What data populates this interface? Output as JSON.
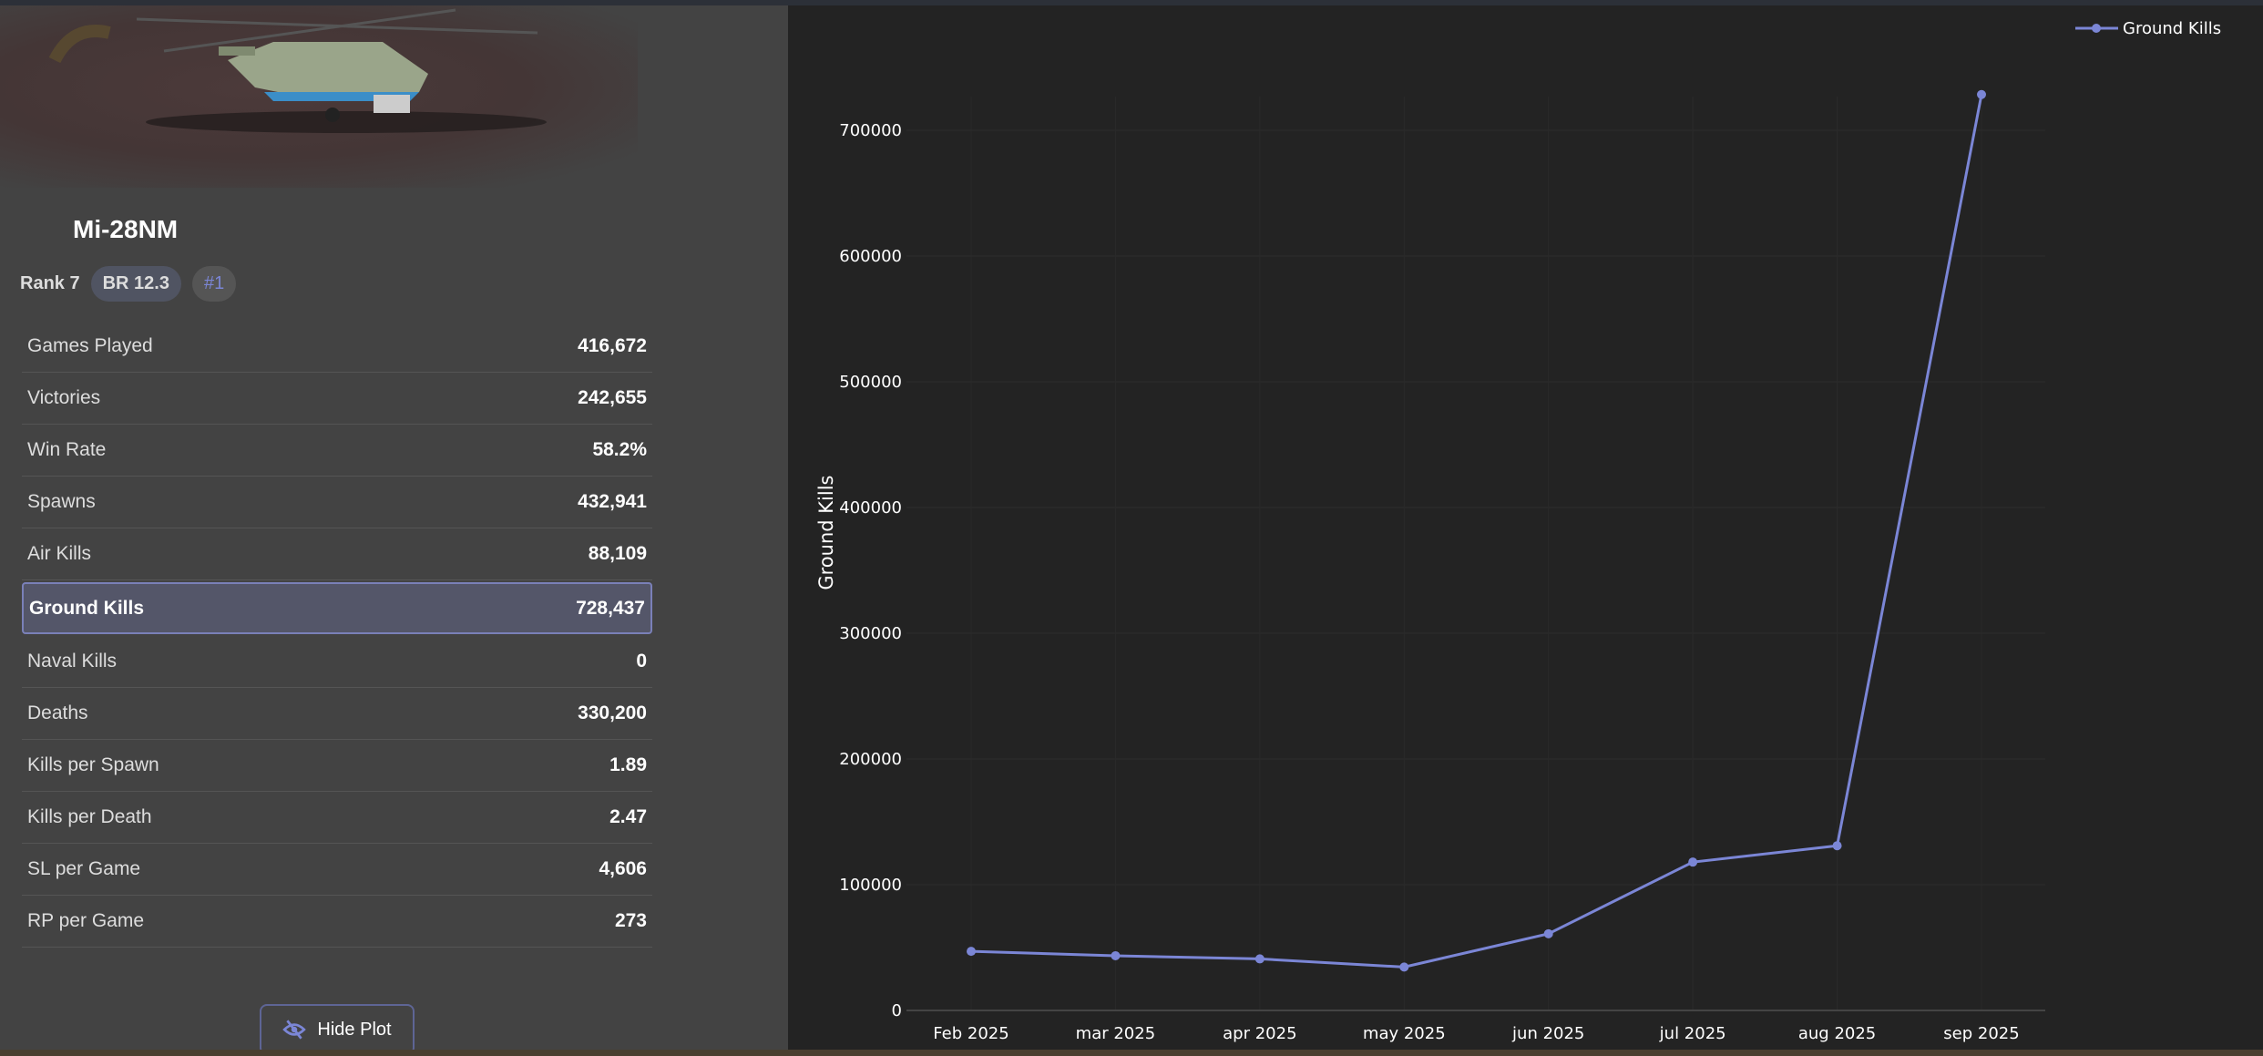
{
  "vehicle": {
    "name": "Mi-28NM",
    "rank": "Rank 7",
    "br": "BR 12.3",
    "position": "#1"
  },
  "stats": [
    {
      "label": "Games Played",
      "value": "416,672"
    },
    {
      "label": "Victories",
      "value": "242,655"
    },
    {
      "label": "Win Rate",
      "value": "58.2%"
    },
    {
      "label": "Spawns",
      "value": "432,941"
    },
    {
      "label": "Air Kills",
      "value": "88,109"
    },
    {
      "label": "Ground Kills",
      "value": "728,437",
      "selected": true
    },
    {
      "label": "Naval Kills",
      "value": "0"
    },
    {
      "label": "Deaths",
      "value": "330,200"
    },
    {
      "label": "Kills per Spawn",
      "value": "1.89"
    },
    {
      "label": "Kills per Death",
      "value": "2.47"
    },
    {
      "label": "SL per Game",
      "value": "4,606"
    },
    {
      "label": "RP per Game",
      "value": "273"
    }
  ],
  "hide_plot_label": "Hide Plot",
  "colors": {
    "accent": "#7b86d6",
    "panel": "#434343",
    "plot_bg": "#232323"
  },
  "chart_data": {
    "type": "line",
    "categories": [
      "Feb 2025",
      "mar 2025",
      "apr 2025",
      "may 2025",
      "jun 2025",
      "jul 2025",
      "aug 2025",
      "sep 2025"
    ],
    "series": [
      {
        "name": "Ground Kills",
        "values": [
          47000,
          43500,
          41000,
          34500,
          61000,
          118000,
          131000,
          728437
        ]
      }
    ],
    "ylabel": "Ground Kills",
    "yticks": [
      0,
      100000,
      200000,
      300000,
      400000,
      500000,
      600000,
      700000
    ],
    "ylim": [
      0,
      760000
    ],
    "grid": true,
    "legend": "top-right"
  }
}
